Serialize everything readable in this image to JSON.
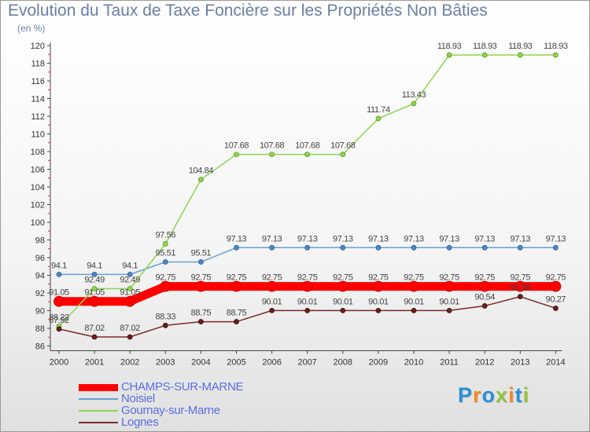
{
  "chart_data": {
    "type": "line",
    "title": "Evolution du Taux de Taxe Foncière sur les Propriétés Non Bâties",
    "subtitle": "(en %)",
    "x": [
      "2000",
      "2001",
      "2002",
      "2003",
      "2004",
      "2005",
      "2006",
      "2007",
      "2008",
      "2009",
      "2010",
      "2011",
      "2012",
      "2013",
      "2014"
    ],
    "ylim": [
      86,
      120
    ],
    "yticks": [
      86,
      88,
      90,
      92,
      94,
      96,
      98,
      100,
      102,
      104,
      106,
      108,
      110,
      112,
      114,
      116,
      118,
      120
    ],
    "grid": false,
    "legend_position": "bottom-left",
    "series": [
      {
        "name": "CHAMPS-SUR-MARNE",
        "color": "#ff0000",
        "values": [
          91.05,
          91.05,
          91.05,
          92.75,
          92.75,
          92.75,
          92.75,
          92.75,
          92.75,
          92.75,
          92.75,
          92.75,
          92.75,
          92.75,
          92.75
        ],
        "labels": [
          "91.05",
          "91.05",
          "91.05",
          "92.75",
          "92.75",
          "92.75",
          "92.75",
          "92.75",
          "92.75",
          "92.75",
          "92.75",
          "92.75",
          "92.75",
          "92.75",
          "92.75"
        ]
      },
      {
        "name": "Noisiel",
        "color": "#6a9fd4",
        "values": [
          94.1,
          94.1,
          94.1,
          95.51,
          95.51,
          97.13,
          97.13,
          97.13,
          97.13,
          97.13,
          97.13,
          97.13,
          97.13,
          97.13,
          97.13
        ],
        "labels": [
          "94.1",
          "94.1",
          "94.1",
          "95.51",
          "95.51",
          "97.13",
          "97.13",
          "97.13",
          "97.13",
          "97.13",
          "97.13",
          "97.13",
          "97.13",
          "97.13",
          "97.13"
        ]
      },
      {
        "name": "Gournay-sur-Marne",
        "color": "#8fd44f",
        "values": [
          88.22,
          92.49,
          92.49,
          97.56,
          104.84,
          107.68,
          107.68,
          107.68,
          107.68,
          111.74,
          113.43,
          118.93,
          118.93,
          118.93,
          118.93
        ],
        "labels": [
          "88.22",
          "92.49",
          "92.49",
          "97.56",
          "104.84",
          "107.68",
          "107.68",
          "107.68",
          "107.68",
          "111.74",
          "113.43",
          "118.93",
          "118.93",
          "118.93",
          "118.93"
        ]
      },
      {
        "name": "Lognes",
        "color": "#7a2a2a",
        "values": [
          87.92,
          87.02,
          87.02,
          88.33,
          88.75,
          88.75,
          90.01,
          90.01,
          90.01,
          90.01,
          90.01,
          90.01,
          90.54,
          91.59,
          90.27
        ],
        "labels": [
          "87.92",
          "87.02",
          "87.02",
          "88.33",
          "88.75",
          "88.75",
          "90.01",
          "90.01",
          "90.01",
          "90.01",
          "90.01",
          "90.01",
          "90.54",
          "91.59",
          "90.27"
        ]
      }
    ]
  },
  "logo": {
    "letters": [
      "P",
      "r",
      "o",
      "x",
      "i",
      "t",
      "i"
    ],
    "colors": [
      "#2a8fd6",
      "#f08a1e",
      "#2a8fd6",
      "#8fc33a",
      "#f08a1e",
      "#2a8fd6",
      "#8fc33a"
    ]
  }
}
